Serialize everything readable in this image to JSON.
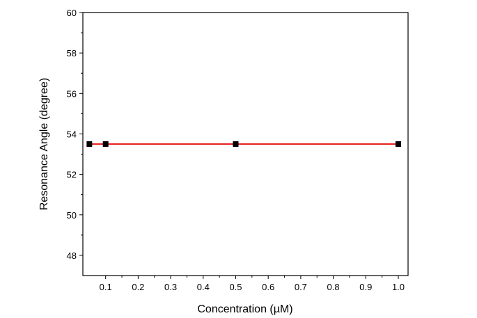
{
  "chart_data": {
    "type": "line",
    "xlabel": "Concentration (µM)",
    "ylabel": "Resonance Angle (degree)",
    "xlim": [
      0.03,
      1.03
    ],
    "ylim": [
      47,
      60
    ],
    "x_ticks": [
      0.1,
      0.2,
      0.3,
      0.4,
      0.5,
      0.6,
      0.7,
      0.8,
      0.9,
      1.0
    ],
    "x_tick_labels": [
      "0.1",
      "0.2",
      "0.3",
      "0.4",
      "0.5",
      "0.6",
      "0.7",
      "0.8",
      "0.9",
      "1.0"
    ],
    "y_ticks": [
      48,
      50,
      52,
      54,
      56,
      58,
      60
    ],
    "y_tick_labels": [
      "48",
      "50",
      "52",
      "54",
      "56",
      "58",
      "60"
    ],
    "grid": false,
    "legend": "none",
    "series": [
      {
        "x": [
          0.05,
          0.1,
          0.5,
          1.0
        ],
        "y": [
          53.5,
          53.5,
          53.5,
          53.5
        ],
        "line_color": "#e8201e",
        "marker_color": "#000000",
        "marker": "square"
      }
    ]
  }
}
